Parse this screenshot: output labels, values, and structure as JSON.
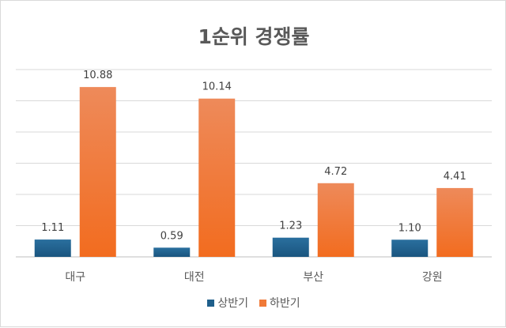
{
  "chart_data": {
    "type": "bar",
    "title": "1순위 경쟁률",
    "categories": [
      "대구",
      "대전",
      "부산",
      "강원"
    ],
    "series": [
      {
        "name": "상반기",
        "values": [
          1.11,
          0.59,
          1.23,
          1.1
        ],
        "labels": [
          "1.11",
          "0.59",
          "1.23",
          "1.10"
        ],
        "color": "#1f5f8b"
      },
      {
        "name": "하반기",
        "values": [
          10.88,
          10.14,
          4.72,
          4.41
        ],
        "labels": [
          "10.88",
          "10.14",
          "4.72",
          "4.41"
        ],
        "color": "#f07a38"
      }
    ],
    "ylim": [
      0,
      12
    ],
    "grid": true,
    "legend": "bottom"
  }
}
